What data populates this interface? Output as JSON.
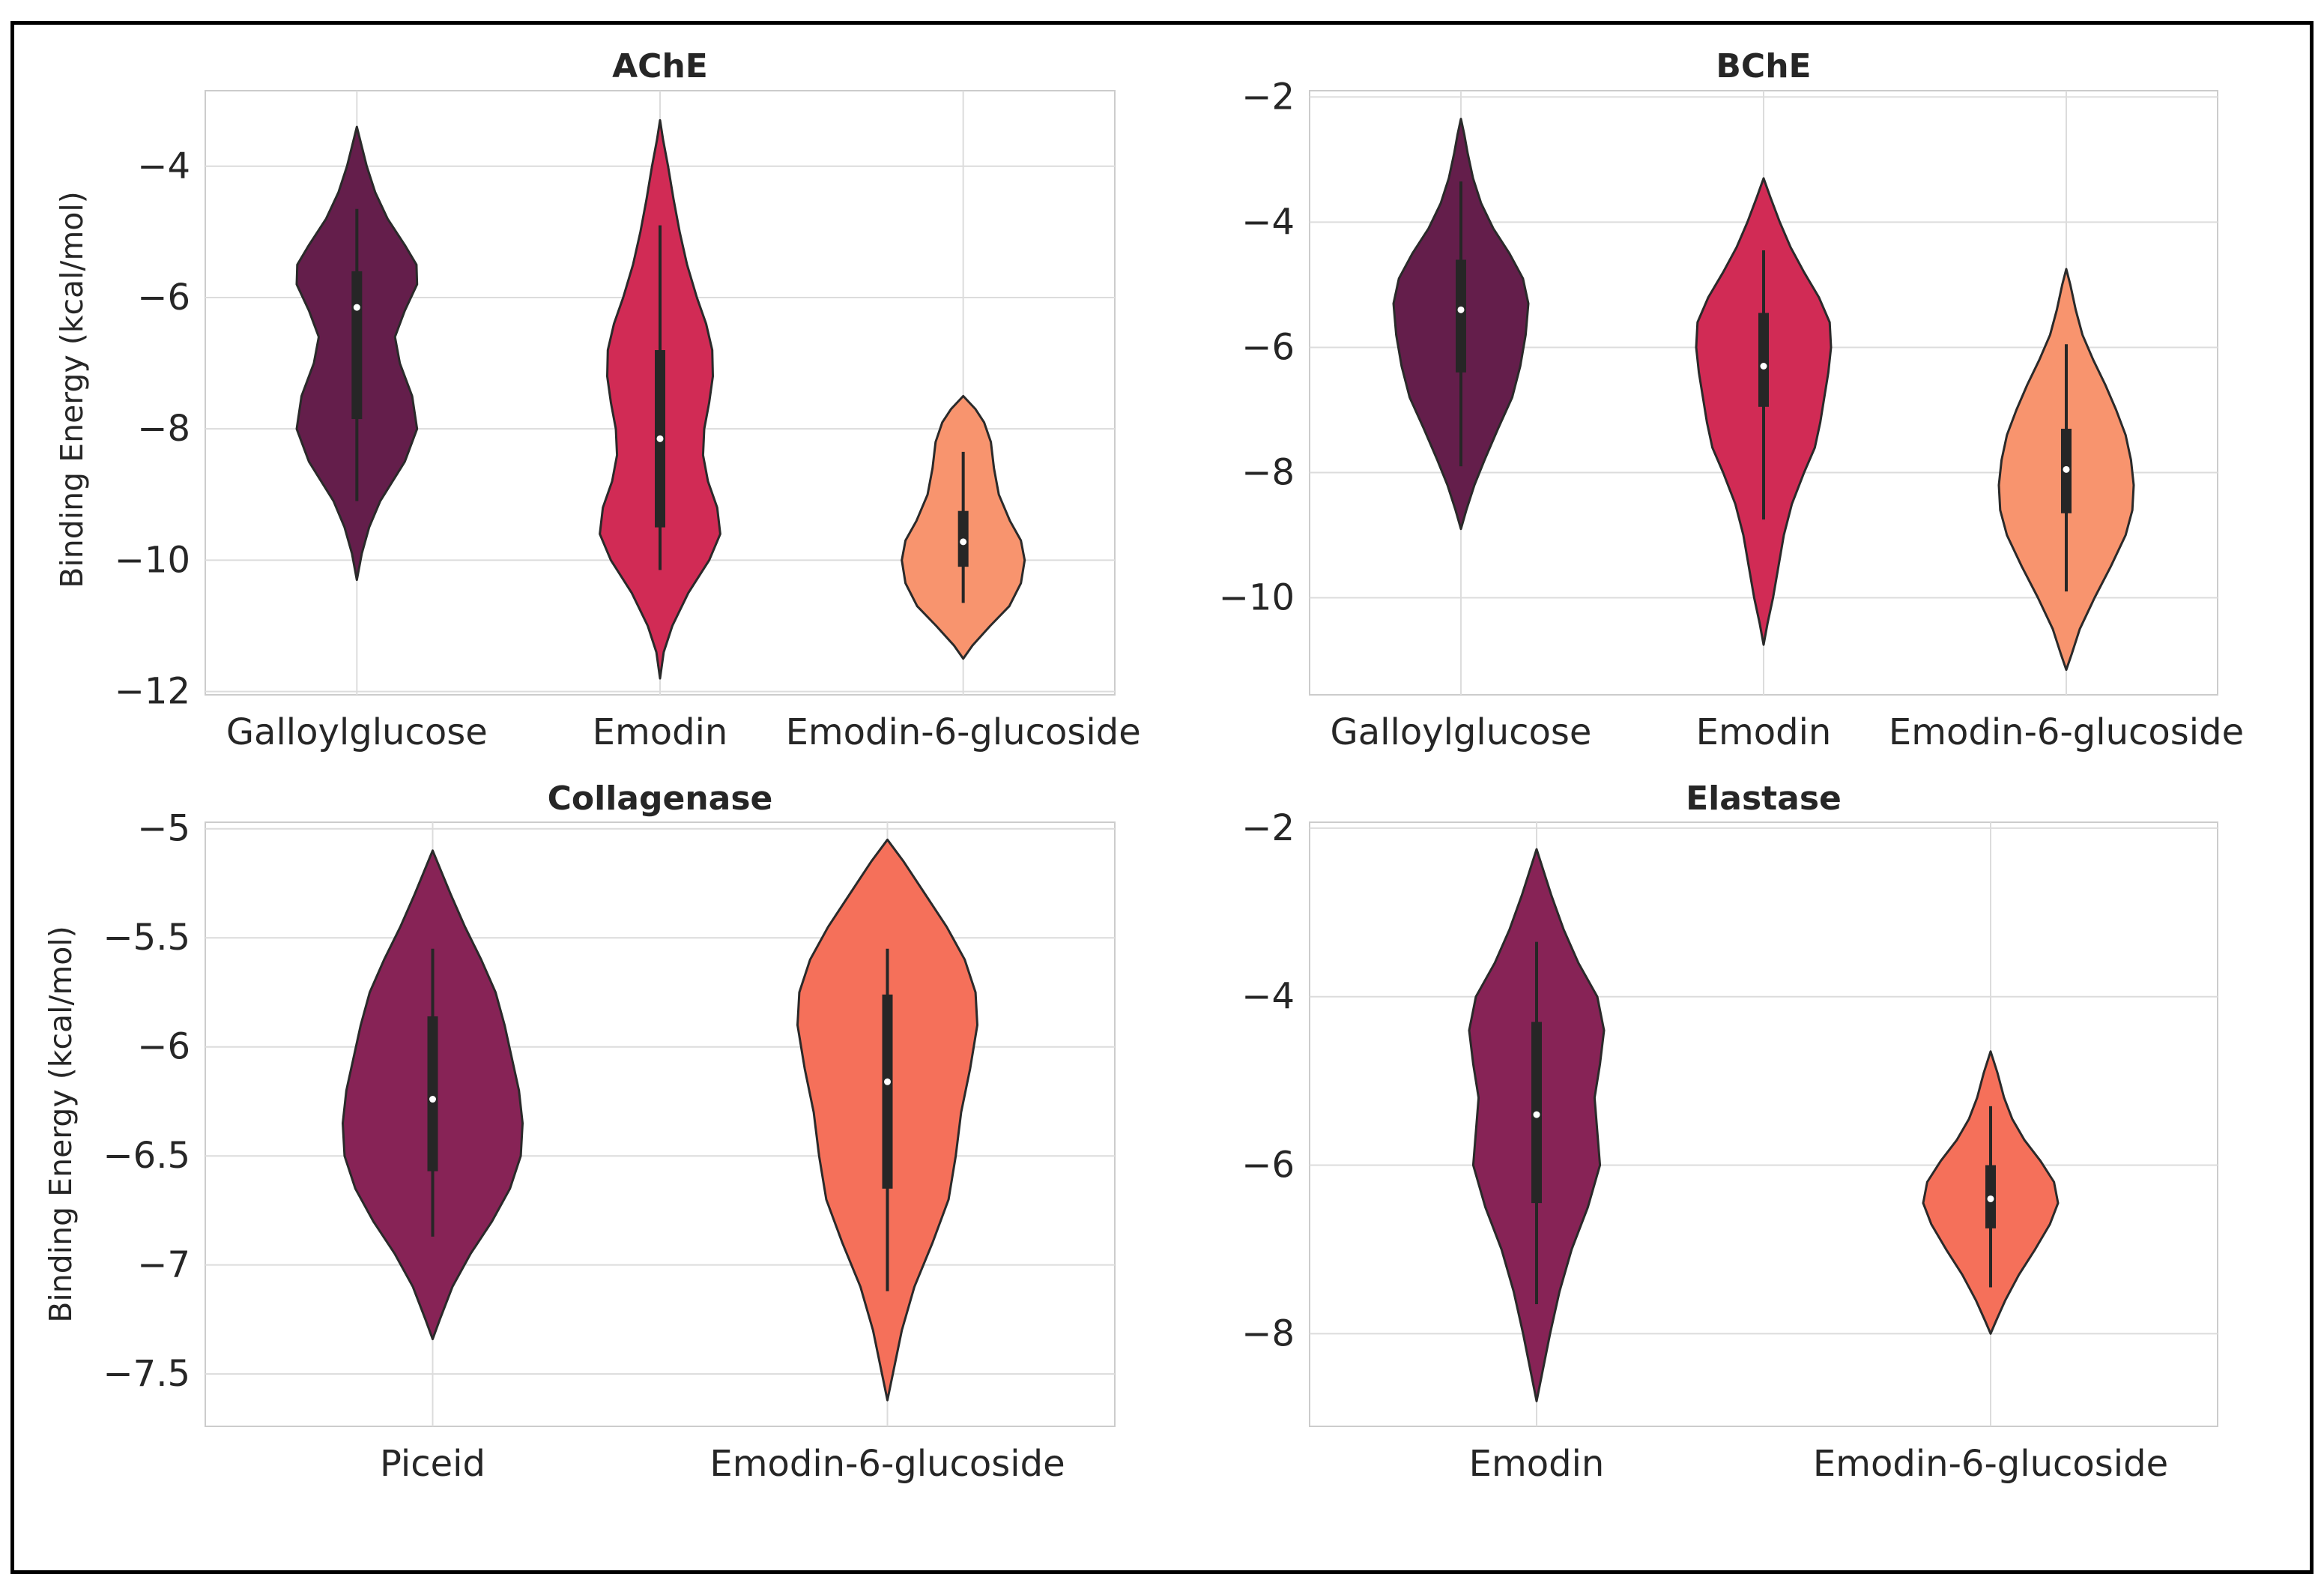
{
  "chart_data": [
    {
      "type": "violin",
      "title": "AChE",
      "ylabel": "Binding Energy (kcal/mol)",
      "categories": [
        "Galloylglucose",
        "Emodin",
        "Emodin-6-glucoside"
      ],
      "colors": [
        "#641e4b",
        "#d12b55",
        "#f8946e"
      ],
      "ylim": [
        -12.05,
        -2.85
      ],
      "yticks": [
        -4,
        -6,
        -8,
        -10,
        -12
      ],
      "grid": true,
      "violins": [
        {
          "min": -10.3,
          "max": -3.4,
          "q1": -7.85,
          "median": -6.15,
          "q3": -5.6,
          "whisker_low": -9.1,
          "whisker_high": -4.65,
          "profile": [
            [
              -10.3,
              0.0
            ],
            [
              -9.9,
              0.08
            ],
            [
              -9.5,
              0.2
            ],
            [
              -9.1,
              0.38
            ],
            [
              -8.5,
              0.78
            ],
            [
              -8.0,
              0.98
            ],
            [
              -7.5,
              0.9
            ],
            [
              -7.0,
              0.7
            ],
            [
              -6.6,
              0.62
            ],
            [
              -6.2,
              0.78
            ],
            [
              -5.8,
              0.98
            ],
            [
              -5.5,
              0.97
            ],
            [
              -5.2,
              0.78
            ],
            [
              -4.8,
              0.5
            ],
            [
              -4.4,
              0.3
            ],
            [
              -4.0,
              0.16
            ],
            [
              -3.7,
              0.08
            ],
            [
              -3.4,
              0.0
            ]
          ]
        },
        {
          "min": -11.8,
          "max": -3.3,
          "q1": -9.5,
          "median": -8.15,
          "q3": -6.8,
          "whisker_low": -10.15,
          "whisker_high": -4.9,
          "profile": [
            [
              -11.8,
              0.0
            ],
            [
              -11.4,
              0.06
            ],
            [
              -11.0,
              0.2
            ],
            [
              -10.5,
              0.46
            ],
            [
              -10.0,
              0.8
            ],
            [
              -9.6,
              0.98
            ],
            [
              -9.2,
              0.93
            ],
            [
              -8.8,
              0.78
            ],
            [
              -8.4,
              0.7
            ],
            [
              -8.0,
              0.72
            ],
            [
              -7.6,
              0.8
            ],
            [
              -7.2,
              0.86
            ],
            [
              -6.8,
              0.85
            ],
            [
              -6.4,
              0.75
            ],
            [
              -6.0,
              0.6
            ],
            [
              -5.5,
              0.44
            ],
            [
              -5.0,
              0.32
            ],
            [
              -4.5,
              0.22
            ],
            [
              -4.0,
              0.13
            ],
            [
              -3.6,
              0.05
            ],
            [
              -3.3,
              0.0
            ]
          ]
        },
        {
          "min": -11.5,
          "max": -7.5,
          "q1": -10.1,
          "median": -9.72,
          "q3": -9.25,
          "whisker_low": -10.65,
          "whisker_high": -8.35,
          "profile": [
            [
              -11.5,
              0.0
            ],
            [
              -11.3,
              0.15
            ],
            [
              -11.0,
              0.44
            ],
            [
              -10.7,
              0.75
            ],
            [
              -10.35,
              0.94
            ],
            [
              -10.0,
              1.0
            ],
            [
              -9.7,
              0.94
            ],
            [
              -9.4,
              0.76
            ],
            [
              -9.0,
              0.58
            ],
            [
              -8.6,
              0.5
            ],
            [
              -8.2,
              0.45
            ],
            [
              -7.9,
              0.34
            ],
            [
              -7.7,
              0.2
            ],
            [
              -7.5,
              0.0
            ]
          ]
        }
      ]
    },
    {
      "type": "violin",
      "title": "BChE",
      "ylabel": "",
      "categories": [
        "Galloylglucose",
        "Emodin",
        "Emodin-6-glucoside"
      ],
      "colors": [
        "#641e4b",
        "#d12b55",
        "#f8946e"
      ],
      "ylim": [
        -11.55,
        -1.9
      ],
      "yticks": [
        -2,
        -4,
        -6,
        -8,
        -10
      ],
      "grid": true,
      "violins": [
        {
          "min": -8.9,
          "max": -2.35,
          "q1": -6.4,
          "median": -5.4,
          "q3": -4.6,
          "whisker_low": -7.9,
          "whisker_high": -3.35,
          "profile": [
            [
              -8.9,
              0.0
            ],
            [
              -8.6,
              0.08
            ],
            [
              -8.2,
              0.2
            ],
            [
              -7.8,
              0.35
            ],
            [
              -7.3,
              0.55
            ],
            [
              -6.8,
              0.76
            ],
            [
              -6.3,
              0.88
            ],
            [
              -5.8,
              0.96
            ],
            [
              -5.3,
              1.0
            ],
            [
              -4.9,
              0.92
            ],
            [
              -4.5,
              0.72
            ],
            [
              -4.1,
              0.48
            ],
            [
              -3.7,
              0.3
            ],
            [
              -3.3,
              0.18
            ],
            [
              -2.9,
              0.1
            ],
            [
              -2.6,
              0.05
            ],
            [
              -2.35,
              0.0
            ]
          ]
        },
        {
          "min": -10.75,
          "max": -3.3,
          "q1": -6.95,
          "median": -6.3,
          "q3": -5.45,
          "whisker_low": -8.75,
          "whisker_high": -4.45,
          "profile": [
            [
              -10.75,
              0.0
            ],
            [
              -10.4,
              0.06
            ],
            [
              -10.0,
              0.14
            ],
            [
              -9.5,
              0.22
            ],
            [
              -9.0,
              0.3
            ],
            [
              -8.5,
              0.42
            ],
            [
              -8.0,
              0.6
            ],
            [
              -7.6,
              0.76
            ],
            [
              -7.2,
              0.84
            ],
            [
              -6.8,
              0.9
            ],
            [
              -6.4,
              0.96
            ],
            [
              -6.0,
              1.0
            ],
            [
              -5.6,
              0.98
            ],
            [
              -5.2,
              0.82
            ],
            [
              -4.8,
              0.6
            ],
            [
              -4.4,
              0.4
            ],
            [
              -4.0,
              0.24
            ],
            [
              -3.6,
              0.1
            ],
            [
              -3.3,
              0.0
            ]
          ]
        },
        {
          "min": -11.15,
          "max": -4.75,
          "q1": -8.65,
          "median": -7.95,
          "q3": -7.3,
          "whisker_low": -9.9,
          "whisker_high": -5.95,
          "profile": [
            [
              -11.15,
              0.0
            ],
            [
              -10.9,
              0.08
            ],
            [
              -10.5,
              0.2
            ],
            [
              -10.0,
              0.42
            ],
            [
              -9.5,
              0.66
            ],
            [
              -9.0,
              0.88
            ],
            [
              -8.6,
              0.98
            ],
            [
              -8.2,
              1.0
            ],
            [
              -7.8,
              0.96
            ],
            [
              -7.4,
              0.88
            ],
            [
              -7.0,
              0.74
            ],
            [
              -6.6,
              0.58
            ],
            [
              -6.2,
              0.4
            ],
            [
              -5.8,
              0.24
            ],
            [
              -5.4,
              0.14
            ],
            [
              -5.0,
              0.06
            ],
            [
              -4.75,
              0.0
            ]
          ]
        }
      ]
    },
    {
      "type": "violin",
      "title": "Collagenase",
      "ylabel": "Binding Energy (kcal/mol)",
      "categories": [
        "Piceid",
        "Emodin-6-glucoside"
      ],
      "colors": [
        "#872356",
        "#f5705a"
      ],
      "ylim": [
        -7.74,
        -4.97
      ],
      "yticks": [
        -5.0,
        -5.5,
        -6.0,
        -6.5,
        -7.0,
        -7.5
      ],
      "grid": true,
      "violins": [
        {
          "min": -7.34,
          "max": -5.1,
          "q1": -6.57,
          "median": -6.24,
          "q3": -5.86,
          "whisker_low": -6.87,
          "whisker_high": -5.55,
          "profile": [
            [
              -7.34,
              0.0
            ],
            [
              -7.25,
              0.08
            ],
            [
              -7.1,
              0.22
            ],
            [
              -6.95,
              0.42
            ],
            [
              -6.8,
              0.66
            ],
            [
              -6.65,
              0.86
            ],
            [
              -6.5,
              0.98
            ],
            [
              -6.35,
              1.0
            ],
            [
              -6.2,
              0.96
            ],
            [
              -6.05,
              0.88
            ],
            [
              -5.9,
              0.8
            ],
            [
              -5.75,
              0.7
            ],
            [
              -5.6,
              0.54
            ],
            [
              -5.45,
              0.36
            ],
            [
              -5.3,
              0.2
            ],
            [
              -5.2,
              0.1
            ],
            [
              -5.1,
              0.0
            ]
          ]
        },
        {
          "min": -7.62,
          "max": -5.05,
          "q1": -6.65,
          "median": -6.16,
          "q3": -5.76,
          "whisker_low": -7.12,
          "whisker_high": -5.55,
          "profile": [
            [
              -7.62,
              0.0
            ],
            [
              -7.5,
              0.06
            ],
            [
              -7.3,
              0.16
            ],
            [
              -7.1,
              0.3
            ],
            [
              -6.9,
              0.5
            ],
            [
              -6.7,
              0.68
            ],
            [
              -6.5,
              0.76
            ],
            [
              -6.3,
              0.82
            ],
            [
              -6.1,
              0.92
            ],
            [
              -5.9,
              1.0
            ],
            [
              -5.75,
              0.98
            ],
            [
              -5.6,
              0.86
            ],
            [
              -5.45,
              0.66
            ],
            [
              -5.3,
              0.42
            ],
            [
              -5.15,
              0.18
            ],
            [
              -5.05,
              0.0
            ]
          ]
        }
      ]
    },
    {
      "type": "violin",
      "title": "Elastase",
      "ylabel": "",
      "categories": [
        "Emodin",
        "Emodin-6-glucoside"
      ],
      "colors": [
        "#872356",
        "#f5705a"
      ],
      "ylim": [
        -9.1,
        -1.93
      ],
      "yticks": [
        -2,
        -4,
        -6,
        -8
      ],
      "grid": true,
      "violins": [
        {
          "min": -8.8,
          "max": -2.25,
          "q1": -6.45,
          "median": -5.4,
          "q3": -4.3,
          "whisker_low": -7.65,
          "whisker_high": -3.35,
          "profile": [
            [
              -8.8,
              0.0
            ],
            [
              -8.4,
              0.1
            ],
            [
              -8.0,
              0.2
            ],
            [
              -7.5,
              0.34
            ],
            [
              -7.0,
              0.52
            ],
            [
              -6.5,
              0.76
            ],
            [
              -6.0,
              0.94
            ],
            [
              -5.6,
              0.9
            ],
            [
              -5.2,
              0.86
            ],
            [
              -4.8,
              0.94
            ],
            [
              -4.4,
              1.0
            ],
            [
              -4.0,
              0.9
            ],
            [
              -3.6,
              0.62
            ],
            [
              -3.2,
              0.4
            ],
            [
              -2.8,
              0.22
            ],
            [
              -2.5,
              0.1
            ],
            [
              -2.25,
              0.0
            ]
          ]
        },
        {
          "min": -8.0,
          "max": -4.65,
          "q1": -6.75,
          "median": -6.4,
          "q3": -6.0,
          "whisker_low": -7.45,
          "whisker_high": -5.3,
          "profile": [
            [
              -8.0,
              0.0
            ],
            [
              -7.85,
              0.08
            ],
            [
              -7.6,
              0.22
            ],
            [
              -7.3,
              0.42
            ],
            [
              -7.0,
              0.66
            ],
            [
              -6.7,
              0.88
            ],
            [
              -6.45,
              1.0
            ],
            [
              -6.2,
              0.94
            ],
            [
              -5.95,
              0.74
            ],
            [
              -5.7,
              0.5
            ],
            [
              -5.45,
              0.32
            ],
            [
              -5.2,
              0.2
            ],
            [
              -4.9,
              0.1
            ],
            [
              -4.65,
              0.0
            ]
          ]
        }
      ]
    }
  ]
}
